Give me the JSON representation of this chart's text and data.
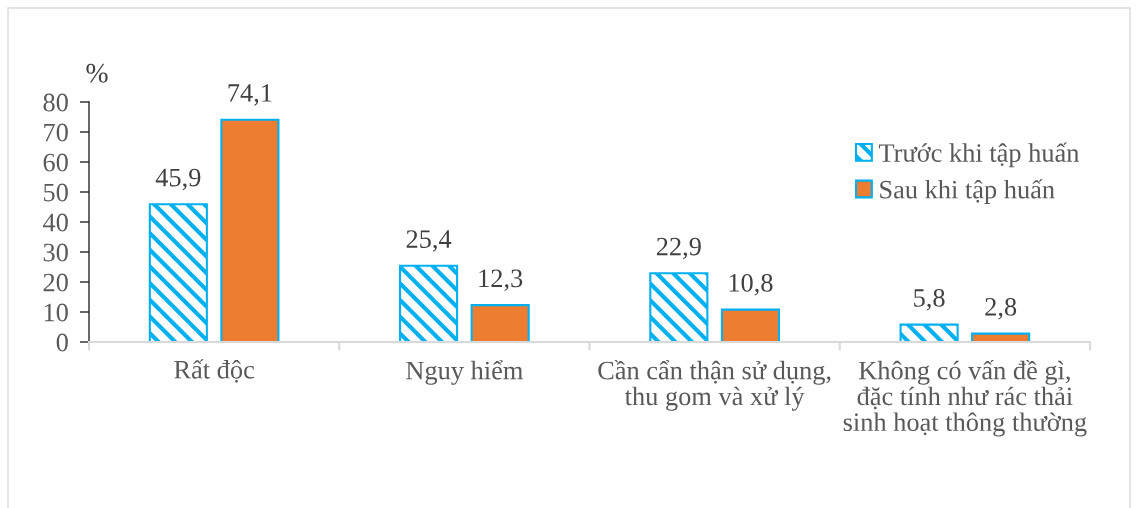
{
  "chart_data": {
    "type": "bar",
    "ylabel": "%",
    "categories": [
      "Rất độc",
      "Nguy hiểm",
      "Cần cẩn thận sử dụng,\nthu gom và xử lý",
      "Không có vấn đề gì,\nđặc tính như rác thải\nsinh hoạt thông thường"
    ],
    "series": [
      {
        "name": "Trước khi tập huấn",
        "color": "#00b0f0",
        "values": [
          45.9,
          25.4,
          22.9,
          5.8
        ],
        "value_labels": [
          "45,9",
          "25,4",
          "22,9",
          "5,8"
        ]
      },
      {
        "name": "Sau khi tập huấn",
        "color": "#ed7d31",
        "values": [
          74.1,
          12.3,
          10.8,
          2.8
        ],
        "value_labels": [
          "74,1",
          "12,3",
          "10,8",
          "2,8"
        ]
      }
    ],
    "ylim": [
      0,
      80
    ],
    "yticks": [
      0,
      10,
      20,
      30,
      40,
      50,
      60,
      70,
      80
    ],
    "grid": false,
    "legend": "right"
  }
}
